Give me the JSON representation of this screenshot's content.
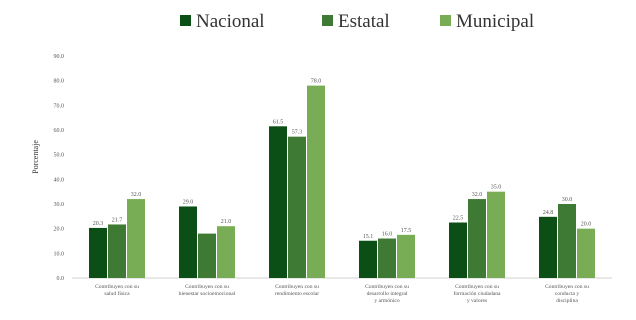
{
  "chart_data": {
    "type": "bar",
    "title": "",
    "ylabel": "Porcentaje",
    "xlabel": "",
    "ylim": [
      0,
      90
    ],
    "yticks": [
      "0.0",
      "10.0",
      "20.0",
      "30.0",
      "40.0",
      "50.0",
      "60.0",
      "70.0",
      "80.0",
      "90.0"
    ],
    "grid": false,
    "legend_position": "top-center",
    "categories": [
      [
        "Contribuyen con su",
        "salud física"
      ],
      [
        "Contribuyen con su",
        "bienestar socioemocional"
      ],
      [
        "Contribuyen con su",
        "rendimiento escolar"
      ],
      [
        "Contribuyen con su",
        "desarrollo integral",
        "y armónico"
      ],
      [
        "Contribuyen con su",
        "formación ciudadana",
        "y valores"
      ],
      [
        "Contribuyen con su",
        "conducta y",
        "disciplina"
      ]
    ],
    "series": [
      {
        "name": "Nacional",
        "color": "#0b4f17",
        "values": [
          20.3,
          29.0,
          61.5,
          15.1,
          22.5,
          24.8
        ]
      },
      {
        "name": "Estatal",
        "color": "#3e7a33",
        "values": [
          21.7,
          18.0,
          57.3,
          16.0,
          32.0,
          30.0
        ]
      },
      {
        "name": "Municipal",
        "color": "#78ad55",
        "values": [
          32.0,
          21.0,
          78.0,
          17.5,
          35.0,
          20.0
        ]
      }
    ],
    "data_labels": [
      [
        "20.3",
        "29.0",
        "61.5",
        "15.1",
        "22.5",
        "24.8"
      ],
      [
        "21.7",
        "",
        "57.3",
        "16.0",
        "32.0",
        "30.0"
      ],
      [
        "32.0",
        "21.0",
        "78.0",
        "17.5",
        "35.0",
        "20.0"
      ]
    ]
  }
}
